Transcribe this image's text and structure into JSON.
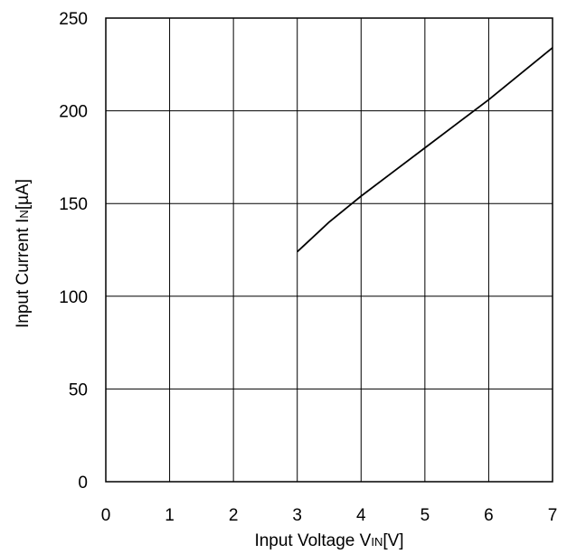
{
  "chart_data": {
    "type": "line",
    "title": "",
    "xlabel_parts": [
      "Input Voltage V",
      "IN",
      "[V]"
    ],
    "ylabel_parts": [
      "Input Current I",
      "N",
      "[µA]"
    ],
    "xlim": [
      0,
      7
    ],
    "ylim": [
      0,
      250
    ],
    "x_ticks": [
      0,
      1,
      2,
      3,
      4,
      5,
      6,
      7
    ],
    "y_ticks": [
      0,
      50,
      100,
      150,
      200,
      250
    ],
    "grid": true,
    "legend": "none",
    "line_color": "#000000",
    "series": [
      {
        "x": [
          3.0,
          3.5,
          4.0,
          4.5,
          5.0,
          5.5,
          6.0,
          6.5,
          7.0
        ],
        "y": [
          124,
          140,
          154,
          167,
          180,
          193,
          206,
          220,
          234
        ]
      }
    ]
  }
}
